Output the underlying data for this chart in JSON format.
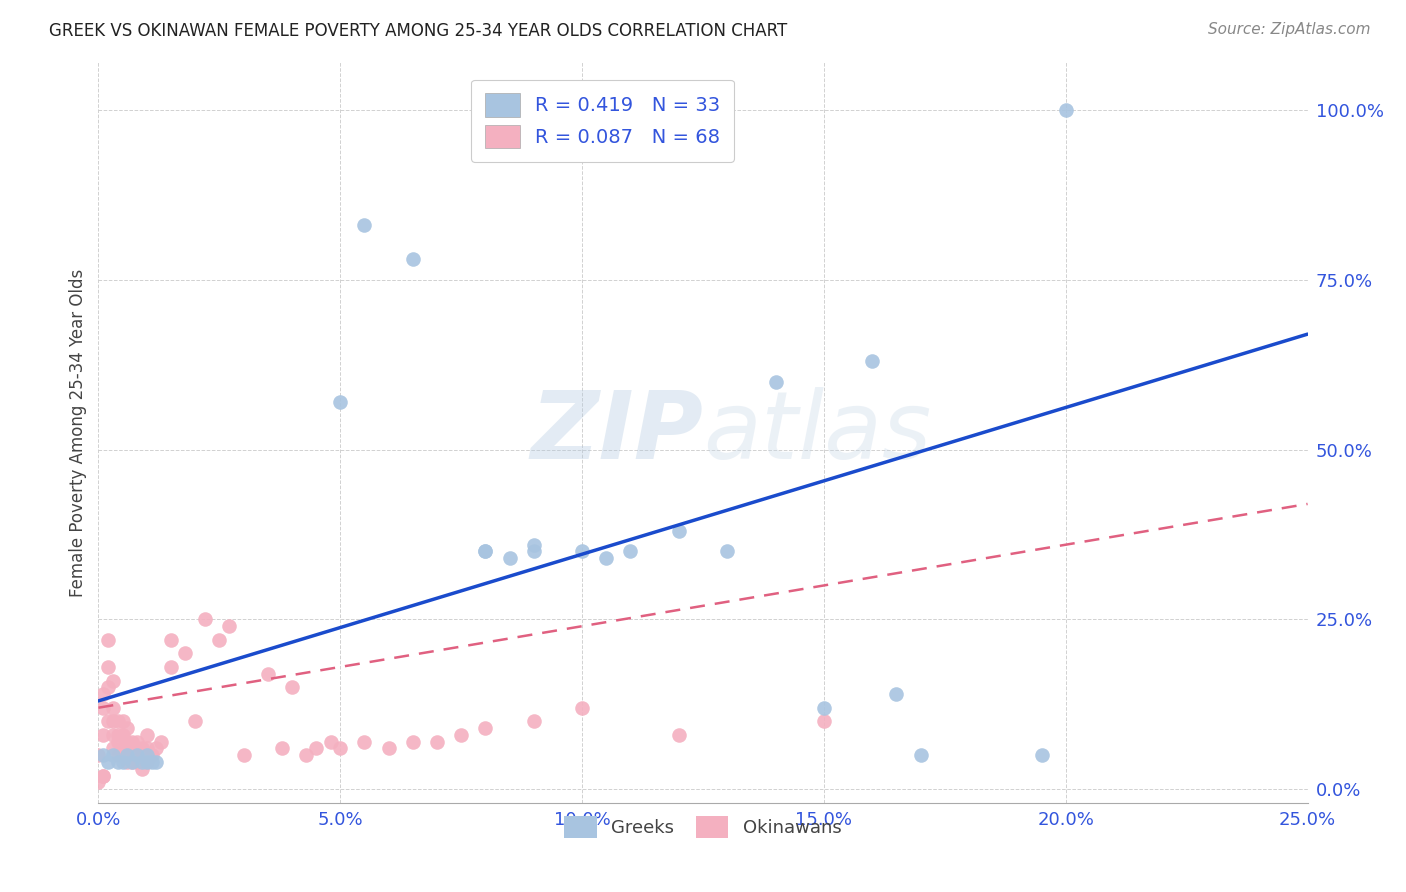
{
  "title": "GREEK VS OKINAWAN FEMALE POVERTY AMONG 25-34 YEAR OLDS CORRELATION CHART",
  "source": "Source: ZipAtlas.com",
  "ylabel": "Female Poverty Among 25-34 Year Olds",
  "xlim": [
    0.0,
    0.25
  ],
  "ylim": [
    -0.02,
    1.07
  ],
  "greek_R": 0.419,
  "greek_N": 33,
  "okinawan_R": 0.087,
  "okinawan_N": 68,
  "greek_color": "#a8c4e0",
  "greek_line_color": "#1a4bcc",
  "okinawan_color": "#f4b0c0",
  "okinawan_line_color": "#e06080",
  "watermark_zip": "ZIP",
  "watermark_atlas": "atlas",
  "background_color": "#ffffff",
  "greek_x": [
    0.001,
    0.002,
    0.003,
    0.004,
    0.005,
    0.006,
    0.007,
    0.008,
    0.009,
    0.01,
    0.01,
    0.011,
    0.012,
    0.05,
    0.055,
    0.065,
    0.08,
    0.08,
    0.085,
    0.09,
    0.09,
    0.1,
    0.105,
    0.11,
    0.12,
    0.13,
    0.14,
    0.15,
    0.165,
    0.17,
    0.195,
    0.2,
    0.16
  ],
  "greek_y": [
    0.05,
    0.04,
    0.05,
    0.04,
    0.04,
    0.05,
    0.04,
    0.05,
    0.04,
    0.04,
    0.05,
    0.04,
    0.04,
    0.57,
    0.83,
    0.78,
    0.35,
    0.35,
    0.34,
    0.35,
    0.36,
    0.35,
    0.34,
    0.35,
    0.38,
    0.35,
    0.6,
    0.12,
    0.14,
    0.05,
    0.05,
    1.0,
    0.63
  ],
  "okinawan_x": [
    0.0,
    0.001,
    0.001,
    0.001,
    0.001,
    0.002,
    0.002,
    0.002,
    0.002,
    0.003,
    0.003,
    0.003,
    0.003,
    0.003,
    0.004,
    0.004,
    0.004,
    0.004,
    0.005,
    0.005,
    0.005,
    0.005,
    0.006,
    0.006,
    0.006,
    0.006,
    0.007,
    0.007,
    0.007,
    0.008,
    0.008,
    0.008,
    0.009,
    0.009,
    0.01,
    0.01,
    0.01,
    0.01,
    0.011,
    0.012,
    0.013,
    0.015,
    0.015,
    0.018,
    0.02,
    0.022,
    0.025,
    0.027,
    0.03,
    0.035,
    0.038,
    0.04,
    0.043,
    0.045,
    0.048,
    0.05,
    0.055,
    0.06,
    0.065,
    0.07,
    0.075,
    0.08,
    0.09,
    0.1,
    0.12,
    0.15,
    0.0,
    0.001
  ],
  "okinawan_y": [
    0.05,
    0.12,
    0.08,
    0.14,
    0.02,
    0.1,
    0.15,
    0.18,
    0.22,
    0.06,
    0.08,
    0.1,
    0.12,
    0.16,
    0.05,
    0.07,
    0.08,
    0.1,
    0.05,
    0.06,
    0.08,
    0.1,
    0.04,
    0.06,
    0.07,
    0.09,
    0.04,
    0.05,
    0.07,
    0.04,
    0.05,
    0.07,
    0.03,
    0.06,
    0.04,
    0.05,
    0.06,
    0.08,
    0.05,
    0.06,
    0.07,
    0.18,
    0.22,
    0.2,
    0.1,
    0.25,
    0.22,
    0.24,
    0.05,
    0.17,
    0.06,
    0.15,
    0.05,
    0.06,
    0.07,
    0.06,
    0.07,
    0.06,
    0.07,
    0.07,
    0.08,
    0.09,
    0.1,
    0.12,
    0.08,
    0.1,
    0.01,
    0.02
  ],
  "greek_line_x0": 0.0,
  "greek_line_x1": 0.25,
  "greek_line_y0": 0.13,
  "greek_line_y1": 0.67,
  "okin_line_x0": 0.0,
  "okin_line_x1": 0.25,
  "okin_line_y0": 0.12,
  "okin_line_y1": 0.42,
  "ytick_right_labels": [
    "100.0%",
    "75.0%",
    "50.0%",
    "25.0%",
    "0.0%"
  ],
  "ytick_right_vals": [
    1.0,
    0.75,
    0.5,
    0.25,
    0.0
  ],
  "xtick_labels": [
    "0.0%",
    "5.0%",
    "10.0%",
    "15.0%",
    "20.0%",
    "25.0%"
  ],
  "xtick_vals": [
    0.0,
    0.05,
    0.1,
    0.15,
    0.2,
    0.25
  ],
  "tick_color": "#3355dd",
  "title_fontsize": 12,
  "source_fontsize": 11,
  "ylabel_fontsize": 12
}
